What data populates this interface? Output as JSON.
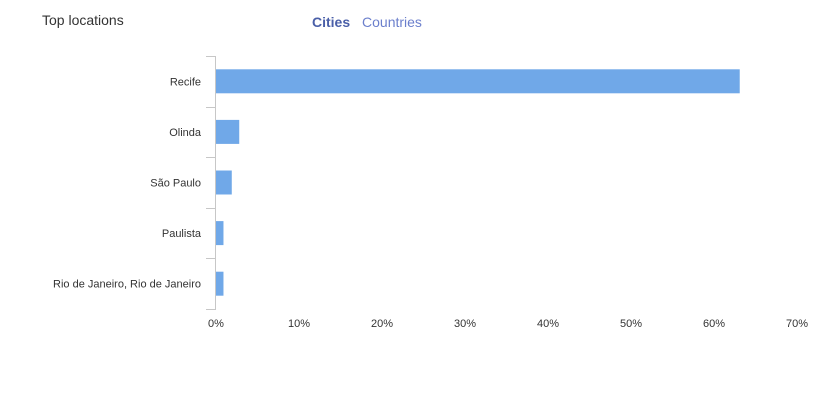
{
  "header": {
    "title": "Top locations",
    "tabs": [
      {
        "label": "Cities",
        "active": true
      },
      {
        "label": "Countries",
        "active": false
      }
    ]
  },
  "colors": {
    "bar": "#70a8e8",
    "axis": "#c7c7c7"
  },
  "chart_data": {
    "type": "bar",
    "orientation": "horizontal",
    "categories": [
      "Recife",
      "Olinda",
      "São Paulo",
      "Paulista",
      "Rio de Janeiro, Rio de Janeiro"
    ],
    "values": [
      63.1,
      2.8,
      1.9,
      0.9,
      0.9
    ],
    "xlim": [
      0,
      70
    ],
    "ticks": [
      0,
      10,
      20,
      30,
      40,
      50,
      60,
      70
    ],
    "tick_labels": [
      "0%",
      "10%",
      "20%",
      "30%",
      "40%",
      "50%",
      "60%",
      "70%"
    ],
    "grid": false,
    "legend": "none"
  }
}
